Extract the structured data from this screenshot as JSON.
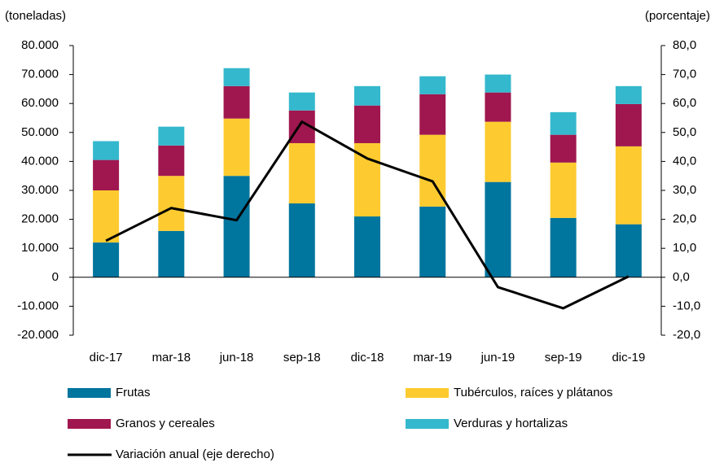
{
  "chart_data": {
    "type": "bar",
    "stacked": true,
    "y_label": "(toneladas)",
    "y2_label": "(porcentaje)",
    "categories": [
      "dic-17",
      "mar-18",
      "jun-18",
      "sep-18",
      "dic-18",
      "mar-19",
      "jun-19",
      "sep-19",
      "dic-19"
    ],
    "series": [
      {
        "name": "Frutas",
        "color": "#00759e",
        "values": [
          12000,
          16000,
          35000,
          25500,
          21000,
          24400,
          32900,
          20500,
          18300
        ]
      },
      {
        "name": "Tubérculos, raíces y plátanos",
        "color": "#fdcb30",
        "values": [
          18000,
          19000,
          19800,
          20800,
          25300,
          24800,
          20800,
          19100,
          26900
        ]
      },
      {
        "name": "Granos y cereales",
        "color": "#a0174f",
        "values": [
          10500,
          10500,
          11200,
          11300,
          13000,
          14000,
          10100,
          9600,
          14600
        ]
      },
      {
        "name": "Verduras y hortalizas",
        "color": "#34b8cd",
        "values": [
          6500,
          6500,
          6200,
          6200,
          6700,
          6200,
          6200,
          7800,
          6200
        ]
      },
      {
        "name": "Variación anual (eje derecho)",
        "color": "#000000",
        "type": "line",
        "axis": "y2",
        "values": [
          12.6,
          23.9,
          19.7,
          53.7,
          41.0,
          33.1,
          -3.4,
          -10.7,
          0.3
        ]
      }
    ],
    "ylim": [
      -20000,
      80000
    ],
    "yticks": [
      {
        "value": -20000,
        "label": "-20.000"
      },
      {
        "value": -10000,
        "label": "-10.000"
      },
      0,
      {
        "value": 10000,
        "label": "10.000"
      },
      {
        "value": 20000,
        "label": "20.000"
      },
      {
        "value": 30000,
        "label": "30.000"
      },
      {
        "value": 40000,
        "label": "40.000"
      },
      {
        "value": 50000,
        "label": "50.000"
      },
      {
        "value": 60000,
        "label": "60.000"
      },
      {
        "value": 70000,
        "label": "70.000"
      },
      {
        "value": 80000,
        "label": "80.000"
      }
    ],
    "y2lim": [
      -20,
      80
    ],
    "y2ticks": [
      {
        "value": -20,
        "label": "-20,0"
      },
      {
        "value": -10,
        "label": "-10,0"
      },
      {
        "value": 0,
        "label": "0,0"
      },
      {
        "value": 10,
        "label": "10,0"
      },
      {
        "value": 20,
        "label": "20,0"
      },
      {
        "value": 30,
        "label": "30,0"
      },
      {
        "value": 40,
        "label": "40,0"
      },
      {
        "value": 50,
        "label": "50,0"
      },
      {
        "value": 60,
        "label": "60,0"
      },
      {
        "value": 70,
        "label": "70,0"
      },
      {
        "value": 80,
        "label": "80,0"
      }
    ]
  }
}
